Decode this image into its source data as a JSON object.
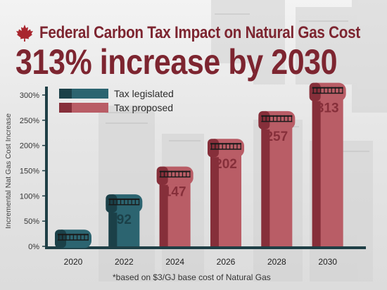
{
  "header": {
    "title": "Federal Carbon Tax Impact on Natural Gas Cost",
    "headline": "313% increase by 2030"
  },
  "legend": [
    {
      "label": "Tax legislated",
      "color": "#2c6470"
    },
    {
      "label": "Tax proposed",
      "color": "#b95d66"
    }
  ],
  "footnote": "*based on $3/GJ base cost of Natural Gas",
  "chart_data": {
    "type": "bar",
    "ylabel": "Incremental Nat Gas Cost Increase",
    "ylim": [
      0,
      300
    ],
    "yticks": [
      "0%",
      "50%",
      "100%",
      "150%",
      "200%",
      "250%",
      "300%"
    ],
    "categories": [
      "2020",
      "2022",
      "2024",
      "2026",
      "2028",
      "2030"
    ],
    "series": [
      {
        "name": "Tax legislated",
        "values": [
          null,
          92,
          null,
          null,
          null,
          null
        ]
      },
      {
        "name": "Tax proposed",
        "values": [
          null,
          null,
          147,
          202,
          257,
          313
        ]
      }
    ],
    "data_labels": [
      "",
      "92",
      "147",
      "202",
      "257",
      "313"
    ],
    "colors": {
      "legislated": "#2c6470",
      "legislated_dark": "#1b4048",
      "proposed": "#b95d66",
      "proposed_dark": "#862f3a",
      "axis": "#1f3f46",
      "title": "#7d2530"
    }
  }
}
